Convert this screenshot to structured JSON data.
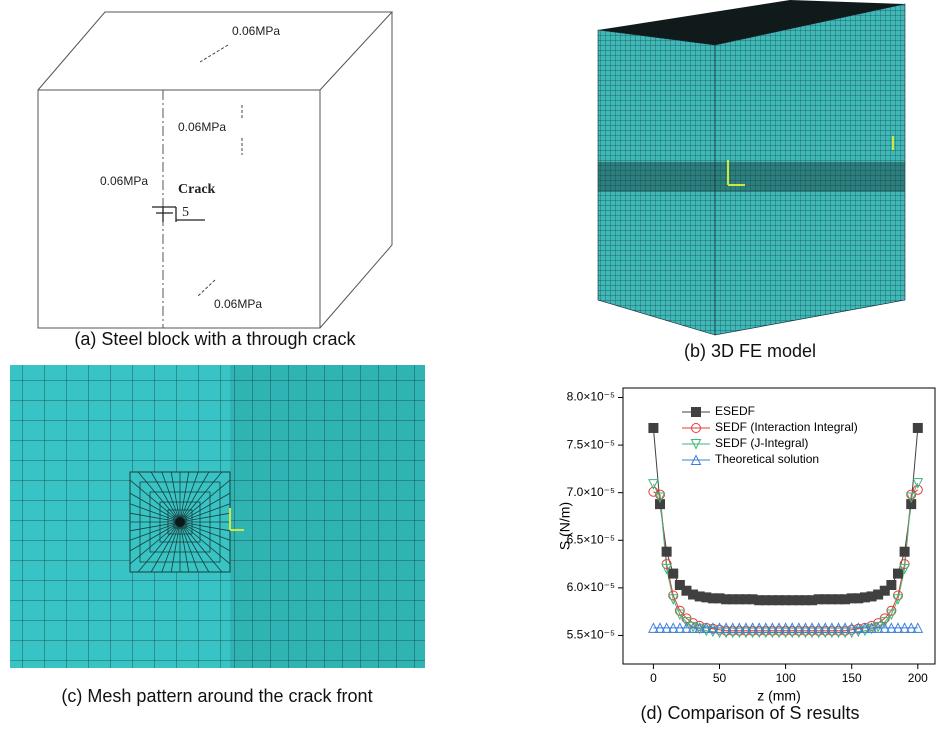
{
  "figure": {
    "captions": [
      "(a) Steel block with a through crack",
      "(b) 3D FE model",
      "(c) Mesh pattern around the crack front",
      "(d) Comparison of S results"
    ],
    "annotations": [
      "0.06MPa",
      "0.06MPa",
      "0.06MPa",
      "Crack",
      "5",
      "0.06MPa"
    ]
  },
  "chart_data": {
    "type": "line",
    "x_label": "z (mm)",
    "y_label": "S (N/m)",
    "x": [
      0,
      5,
      10,
      15,
      20,
      25,
      30,
      35,
      40,
      45,
      50,
      55,
      60,
      65,
      70,
      75,
      80,
      85,
      90,
      95,
      100,
      105,
      110,
      115,
      120,
      125,
      130,
      135,
      140,
      145,
      150,
      155,
      160,
      165,
      170,
      175,
      180,
      185,
      190,
      195,
      200
    ],
    "series": [
      {
        "name": "ESEDF",
        "color": "#404040",
        "marker": "square",
        "values": [
          7.68e-05,
          6.88e-05,
          6.38e-05,
          6.15e-05,
          6.03e-05,
          5.97e-05,
          5.93e-05,
          5.91e-05,
          5.9e-05,
          5.89e-05,
          5.89e-05,
          5.88e-05,
          5.88e-05,
          5.88e-05,
          5.88e-05,
          5.88e-05,
          5.87e-05,
          5.87e-05,
          5.87e-05,
          5.87e-05,
          5.87e-05,
          5.87e-05,
          5.87e-05,
          5.87e-05,
          5.87e-05,
          5.88e-05,
          5.88e-05,
          5.88e-05,
          5.88e-05,
          5.88e-05,
          5.89e-05,
          5.89e-05,
          5.9e-05,
          5.91e-05,
          5.93e-05,
          5.97e-05,
          6.03e-05,
          6.15e-05,
          6.38e-05,
          6.88e-05,
          7.68e-05
        ]
      },
      {
        "name": "SEDF (Interaction Integral)",
        "color": "#e8393a",
        "marker": "circle",
        "values": [
          7.01e-05,
          6.98e-05,
          6.25e-05,
          5.92e-05,
          5.76e-05,
          5.68e-05,
          5.63e-05,
          5.6e-05,
          5.58e-05,
          5.57e-05,
          5.56e-05,
          5.55e-05,
          5.55e-05,
          5.55e-05,
          5.55e-05,
          5.55e-05,
          5.55e-05,
          5.55e-05,
          5.55e-05,
          5.55e-05,
          5.55e-05,
          5.55e-05,
          5.55e-05,
          5.55e-05,
          5.55e-05,
          5.55e-05,
          5.55e-05,
          5.55e-05,
          5.55e-05,
          5.55e-05,
          5.56e-05,
          5.57e-05,
          5.58e-05,
          5.6e-05,
          5.63e-05,
          5.68e-05,
          5.76e-05,
          5.92e-05,
          6.25e-05,
          6.98e-05,
          7.03e-05
        ]
      },
      {
        "name": "SEDF (J-Integral)",
        "color": "#3cb878",
        "marker": "triangle-down",
        "values": [
          7.09e-05,
          6.95e-05,
          6.2e-05,
          5.88e-05,
          5.72e-05,
          5.64e-05,
          5.59e-05,
          5.57e-05,
          5.55e-05,
          5.54e-05,
          5.53e-05,
          5.53e-05,
          5.53e-05,
          5.53e-05,
          5.53e-05,
          5.53e-05,
          5.53e-05,
          5.53e-05,
          5.53e-05,
          5.53e-05,
          5.53e-05,
          5.53e-05,
          5.53e-05,
          5.53e-05,
          5.53e-05,
          5.53e-05,
          5.53e-05,
          5.53e-05,
          5.53e-05,
          5.53e-05,
          5.53e-05,
          5.54e-05,
          5.55e-05,
          5.57e-05,
          5.59e-05,
          5.64e-05,
          5.72e-05,
          5.88e-05,
          6.2e-05,
          6.95e-05,
          7.1e-05
        ]
      },
      {
        "name": "Theoretical solution",
        "color": "#3a7fd8",
        "marker": "triangle-up",
        "values": [
          5.58e-05,
          5.58e-05,
          5.58e-05,
          5.58e-05,
          5.58e-05,
          5.58e-05,
          5.58e-05,
          5.58e-05,
          5.58e-05,
          5.58e-05,
          5.58e-05,
          5.58e-05,
          5.58e-05,
          5.58e-05,
          5.58e-05,
          5.58e-05,
          5.58e-05,
          5.58e-05,
          5.58e-05,
          5.58e-05,
          5.58e-05,
          5.58e-05,
          5.58e-05,
          5.58e-05,
          5.58e-05,
          5.58e-05,
          5.58e-05,
          5.58e-05,
          5.58e-05,
          5.58e-05,
          5.58e-05,
          5.58e-05,
          5.58e-05,
          5.58e-05,
          5.58e-05,
          5.58e-05,
          5.58e-05,
          5.58e-05,
          5.58e-05,
          5.58e-05,
          5.58e-05
        ]
      }
    ],
    "xlim": [
      -23,
      213
    ],
    "xticks": [
      0,
      50,
      100,
      150,
      200
    ],
    "ylim": [
      5.2e-05,
      8.1e-05
    ],
    "yticks": [
      {
        "value": 5.5e-05,
        "label": "5.5×10⁻⁵"
      },
      {
        "value": 6e-05,
        "label": "6.0×10⁻⁵"
      },
      {
        "value": 6.5e-05,
        "label": "6.5×10⁻⁵"
      },
      {
        "value": 7e-05,
        "label": "7.0×10⁻⁵"
      },
      {
        "value": 7.5e-05,
        "label": "7.5×10⁻⁵"
      },
      {
        "value": 8e-05,
        "label": "8.0×10⁻⁵"
      }
    ],
    "legend": "upper-left"
  }
}
